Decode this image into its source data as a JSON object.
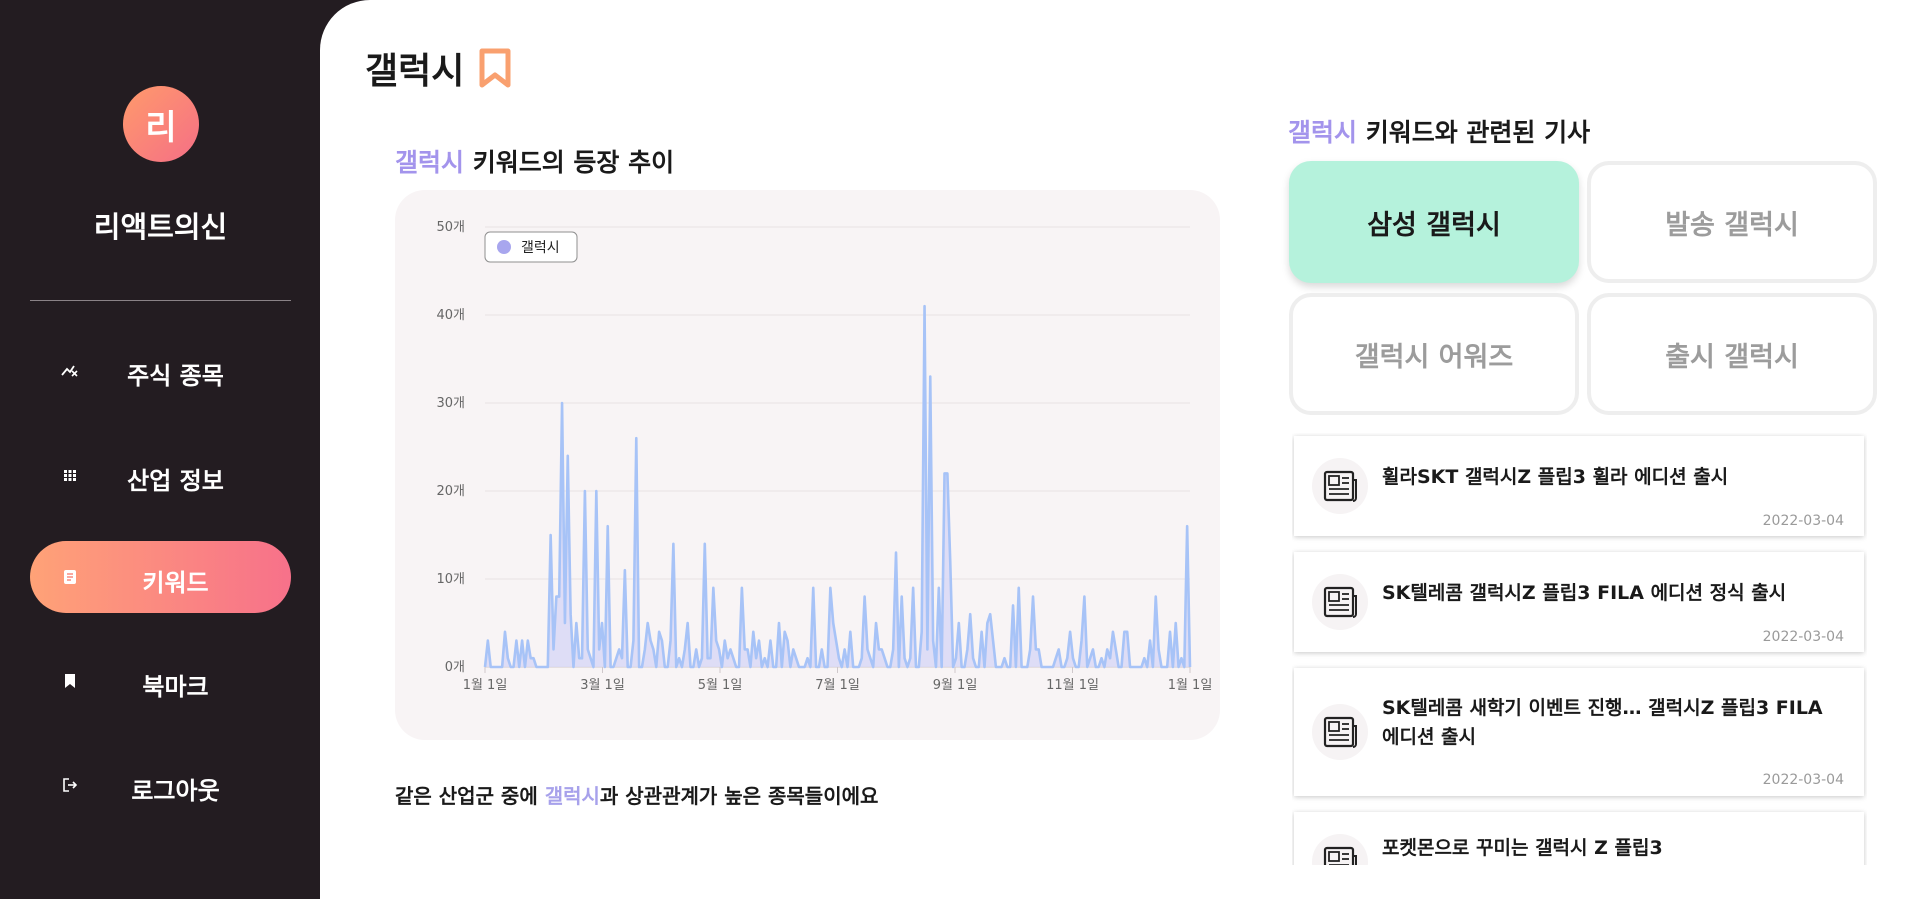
{
  "sidebar": {
    "avatar_initial": "리",
    "brand": "리액트의신",
    "nav": [
      {
        "label": "주식 종목",
        "icon": "stock-chart-icon",
        "active": false
      },
      {
        "label": "산업 정보",
        "icon": "grid-dots-icon",
        "active": false
      },
      {
        "label": "키워드",
        "icon": "document-icon",
        "active": true
      },
      {
        "label": "북마크",
        "icon": "bookmark-icon",
        "active": false
      },
      {
        "label": "로그아웃",
        "icon": "logout-icon",
        "active": false
      }
    ]
  },
  "header": {
    "title": "갤럭시",
    "bookmark_icon": "bookmark-outline-icon",
    "accent_color": "#f9a06f"
  },
  "trend": {
    "keyword": "갤럭시",
    "title_suffix": " 키워드의 등장 추이"
  },
  "correlation": {
    "prefix": "같은 산업군 중에 ",
    "keyword": "갤럭시",
    "suffix": "과 상관관계가 높은 종목들이에요"
  },
  "news": {
    "keyword": "갤럭시",
    "title_suffix": " 키워드와 관련된 기사",
    "related_keywords": [
      {
        "label": "삼성 갤럭시",
        "selected": true
      },
      {
        "label": "발송 갤럭시",
        "selected": false
      },
      {
        "label": "갤럭시 어워즈",
        "selected": false
      },
      {
        "label": "출시 갤럭시",
        "selected": false
      }
    ],
    "articles": [
      {
        "title": "휠라SKT 갤럭시Z 플립3 휠라 에디션 출시",
        "date": "2022-03-04",
        "icon": "newspaper-icon"
      },
      {
        "title": "SK텔레콤 갤럭시Z 플립3 FILA 에디션 정식 출시",
        "date": "2022-03-04",
        "icon": "newspaper-icon"
      },
      {
        "title": "SK텔레콤 새학기 이벤트 진행… 갤럭시Z 플립3 FILA 에디션 출시",
        "date": "2022-03-04",
        "icon": "newspaper-icon"
      },
      {
        "title": "포켓몬으로 꾸미는 갤럭시 Z 플립3",
        "date": "",
        "icon": "newspaper-icon"
      }
    ]
  },
  "colors": {
    "sidebar_bg": "#231c21",
    "nav_active_gradient": [
      "#ffa277",
      "#f7718a"
    ],
    "keyword_accent": "#a394ec",
    "selected_keyword_bg": "#b5f2dc",
    "line_color": "#a7c3f7",
    "area_color": "#d9d8f6"
  },
  "chart_data": {
    "type": "area",
    "title": "",
    "xlabel": "",
    "ylabel": "",
    "ylim": [
      0,
      50
    ],
    "y_ticks": [
      "0개",
      "10개",
      "20개",
      "30개",
      "40개",
      "50개"
    ],
    "x_ticks": [
      "1월 1일",
      "3월 1일",
      "5월 1일",
      "7월 1일",
      "9월 1일",
      "11월 1일",
      "1월 1일"
    ],
    "legend": {
      "position": "top-left"
    },
    "grid": true,
    "series": [
      {
        "name": "갤럭시",
        "values": [
          0,
          3,
          0,
          0,
          0,
          0,
          0,
          4,
          1,
          0,
          0,
          3,
          0,
          3,
          0,
          3,
          1,
          1,
          0,
          0,
          0,
          0,
          0,
          15,
          2,
          8,
          8,
          30,
          5,
          24,
          6,
          0,
          5,
          1,
          1,
          20,
          2,
          1,
          0,
          20,
          2,
          5,
          0,
          16,
          0,
          0,
          1,
          2,
          1,
          11,
          0,
          0,
          3,
          26,
          0,
          0,
          2,
          5,
          3,
          2,
          0,
          4,
          3,
          0,
          0,
          3,
          14,
          0,
          1,
          0,
          2,
          5,
          0,
          0,
          2,
          0,
          1,
          14,
          1,
          1,
          9,
          3,
          2,
          0,
          3,
          1,
          2,
          1,
          0,
          0,
          9,
          2,
          2,
          0,
          4,
          1,
          3,
          0,
          1,
          0,
          3,
          0,
          0,
          5,
          0,
          4,
          3,
          0,
          2,
          1,
          0,
          0,
          0,
          1,
          0,
          9,
          0,
          0,
          2,
          0,
          0,
          9,
          5,
          3,
          1,
          0,
          2,
          0,
          4,
          0,
          0,
          0,
          1,
          8,
          2,
          1,
          0,
          5,
          2,
          2,
          1,
          0,
          0,
          2,
          13,
          0,
          8,
          1,
          0,
          1,
          9,
          0,
          0,
          4,
          41,
          2,
          33,
          3,
          0,
          9,
          0,
          22,
          22,
          12,
          0,
          1,
          5,
          0,
          0,
          2,
          6,
          1,
          0,
          0,
          4,
          0,
          5,
          6,
          3,
          0,
          0,
          0,
          1,
          0,
          0,
          7,
          0,
          9,
          0,
          0,
          0,
          2,
          8,
          2,
          2,
          0,
          0,
          0,
          0,
          0,
          1,
          2,
          0,
          0,
          1,
          4,
          1,
          0,
          0,
          3,
          8,
          0,
          1,
          2,
          0,
          0,
          1,
          0,
          2,
          1,
          4,
          2,
          0,
          0,
          4,
          4,
          0,
          0,
          0,
          0,
          0,
          1,
          0,
          3,
          0,
          8,
          2,
          0,
          0,
          0,
          4,
          0,
          5,
          0,
          1,
          0,
          16,
          0
        ]
      }
    ]
  }
}
